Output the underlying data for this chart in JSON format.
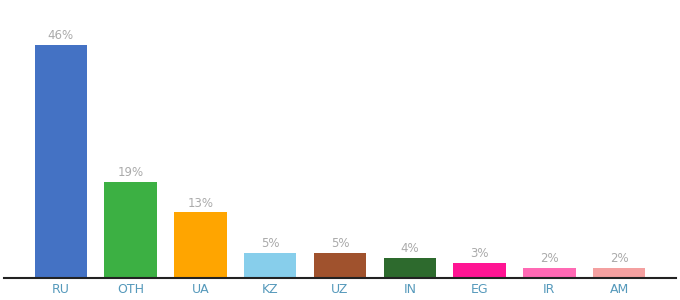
{
  "categories": [
    "RU",
    "OTH",
    "UA",
    "KZ",
    "UZ",
    "IN",
    "EG",
    "IR",
    "AM"
  ],
  "values": [
    46,
    19,
    13,
    5,
    5,
    4,
    3,
    2,
    2
  ],
  "bar_colors": [
    "#4472c4",
    "#3cb043",
    "#ffa500",
    "#87ceeb",
    "#a0522d",
    "#2d6a2d",
    "#ff1493",
    "#ff69b4",
    "#f4a0a0"
  ],
  "label_fontsize": 8.5,
  "tick_fontsize": 9,
  "label_color": "#aaaaaa",
  "tick_color": "#5599bb",
  "ylim": [
    0,
    54
  ],
  "bar_width": 0.75,
  "figure_facecolor": "#ffffff",
  "axes_facecolor": "#ffffff",
  "bottom_line_color": "#222222"
}
